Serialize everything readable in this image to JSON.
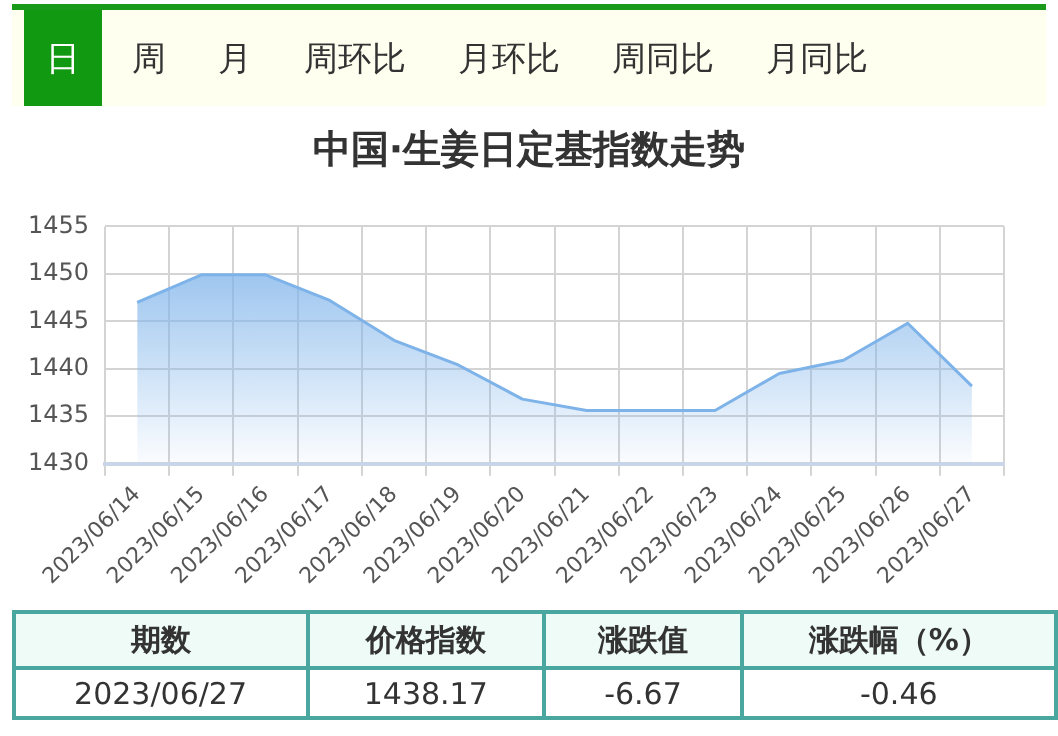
{
  "chart_data": {
    "type": "area",
    "title": "中国·生姜日定基指数走势",
    "categories": [
      "2023/06/14",
      "2023/06/15",
      "2023/06/16",
      "2023/06/17",
      "2023/06/18",
      "2023/06/19",
      "2023/06/20",
      "2023/06/21",
      "2023/06/22",
      "2023/06/23",
      "2023/06/24",
      "2023/06/25",
      "2023/06/26",
      "2023/06/27"
    ],
    "series": [
      {
        "color": "#7eb3ea",
        "values": [
          1447.0,
          1449.9,
          1449.9,
          1447.2,
          1443.0,
          1440.4,
          1436.8,
          1435.6,
          1435.6,
          1435.6,
          1439.5,
          1440.9,
          1444.8,
          1438.17
        ]
      }
    ],
    "ylim": [
      1430,
      1455
    ],
    "yticks": [
      1430,
      1435,
      1440,
      1445,
      1450,
      1455
    ],
    "grid": true,
    "legend": false,
    "marker": "none",
    "line_style": "solid",
    "annotations": [
      "日",
      "周",
      "月",
      "周环比",
      "月环比",
      "周同比",
      "月同比",
      "期数",
      "价格指数",
      "涨跌值",
      "涨跌幅（%）",
      "2023/06/27",
      "1438.17",
      "-6.67",
      "-0.46"
    ]
  }
}
